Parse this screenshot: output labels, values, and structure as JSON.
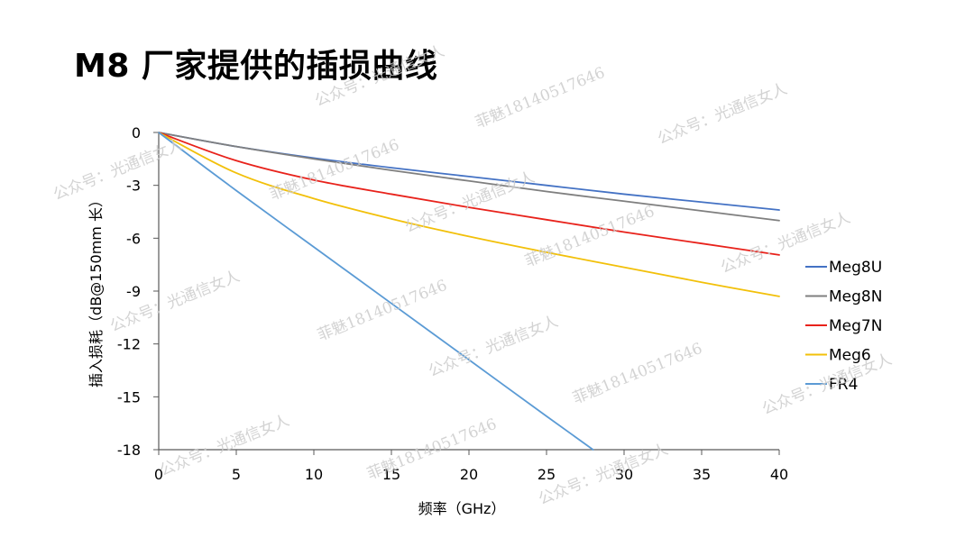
{
  "title": "M8 厂家提供的插损曲线",
  "watermark": {
    "account": "公众号：光通信女人",
    "contact": "菲魅18140517646"
  },
  "chart_data": {
    "type": "line",
    "title": "",
    "xlabel": "频率（GHz）",
    "ylabel": "插入损耗（dB@150mm 长）",
    "xlim": [
      0,
      40
    ],
    "ylim": [
      -18,
      0
    ],
    "xticks": [
      0,
      5,
      10,
      15,
      20,
      25,
      30,
      35,
      40
    ],
    "yticks": [
      0,
      -3,
      -6,
      -9,
      -12,
      -15,
      -18
    ],
    "grid": false,
    "legend_position": "right",
    "series": [
      {
        "name": "Meg8U",
        "color": "#4472c4",
        "x": [
          0,
          5,
          10,
          15,
          20,
          25,
          30,
          35,
          40
        ],
        "y": [
          0,
          -0.8,
          -1.45,
          -2.0,
          -2.5,
          -3.0,
          -3.5,
          -3.95,
          -4.4
        ]
      },
      {
        "name": "Meg8N",
        "color": "#7f7f7f",
        "x": [
          0,
          5,
          10,
          15,
          20,
          25,
          30,
          35,
          40
        ],
        "y": [
          0,
          -0.8,
          -1.5,
          -2.15,
          -2.75,
          -3.35,
          -3.9,
          -4.45,
          -5.0
        ]
      },
      {
        "name": "Meg7N",
        "color": "#e8221b",
        "x": [
          0,
          5,
          10,
          15,
          20,
          25,
          30,
          35,
          40
        ],
        "y": [
          0,
          -1.6,
          -2.7,
          -3.5,
          -4.25,
          -4.95,
          -5.65,
          -6.3,
          -6.95
        ]
      },
      {
        "name": "Meg6",
        "color": "#f2c00a",
        "x": [
          0,
          5,
          10,
          15,
          20,
          25,
          30,
          35,
          40
        ],
        "y": [
          0,
          -2.3,
          -3.75,
          -4.9,
          -5.9,
          -6.8,
          -7.65,
          -8.5,
          -9.3
        ]
      },
      {
        "name": "FR4",
        "color": "#5b9bd5",
        "x": [
          0,
          5,
          10,
          15,
          20,
          25,
          28
        ],
        "y": [
          0,
          -3.3,
          -6.5,
          -9.7,
          -12.9,
          -16.1,
          -18.0
        ]
      }
    ]
  }
}
